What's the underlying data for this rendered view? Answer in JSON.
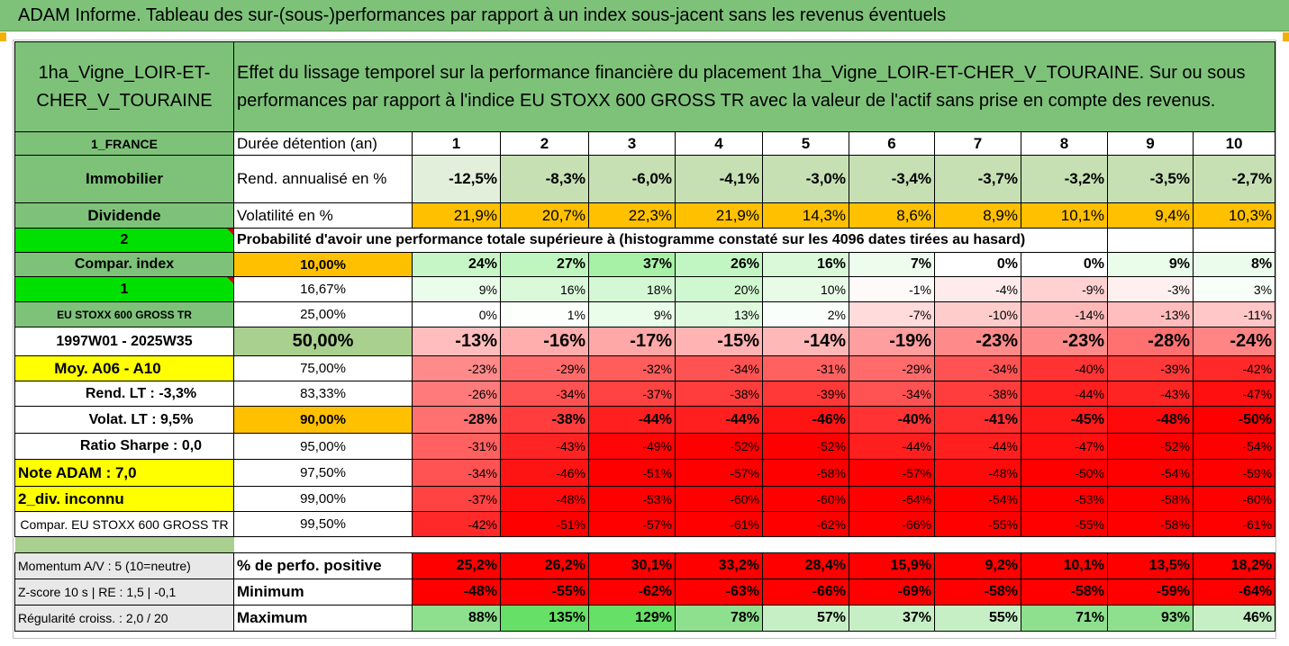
{
  "banner": "ADAM Informe. Tableau des sur-(sous-)performances par rapport à un index sous-jacent sans les revenus éventuels",
  "asset_name": "1ha_Vigne_LOIR-ET-CHER_V_TOURAINE",
  "description": "Effet du lissage temporel sur la performance financière du placement 1ha_Vigne_LOIR-ET-CHER_V_TOURAINE. Sur ou sous performances par rapport à l'indice EU STOXX 600 GROSS TR avec la valeur de l'actif sans prise en compte des revenus.",
  "years": [
    "1",
    "2",
    "3",
    "4",
    "5",
    "6",
    "7",
    "8",
    "9",
    "10"
  ],
  "colors": {
    "green_header": "#7ec27a",
    "bright_green": "#00e000",
    "yellow": "#ffff00",
    "orange": "#ffc000",
    "red_text": "#d00000"
  },
  "rows_top": {
    "country": "1_FRANCE",
    "duration_label": "Durée détention (an)",
    "category": "Immobilier",
    "return_label": "Rend. annualisé en %",
    "returns": [
      "-12,5%",
      "-8,3%",
      "-6,0%",
      "-4,1%",
      "-3,0%",
      "-3,4%",
      "-3,7%",
      "-3,2%",
      "-3,5%",
      "-2,7%"
    ],
    "dividend": "Dividende",
    "vol_label": "Volatilité en %",
    "vols": [
      "21,9%",
      "20,7%",
      "22,3%",
      "21,9%",
      "14,3%",
      "8,6%",
      "8,9%",
      "10,1%",
      "9,4%",
      "10,3%"
    ]
  },
  "prob_header": {
    "code": "2",
    "text": "Probabilité d'avoir une performance totale supérieure à (histogramme constaté sur les 4096 dates tirées au hasard)"
  },
  "left_labels": [
    "Compar. index",
    "1",
    "EU STOXX 600 GROSS TR",
    "1997W01 - 2025W35",
    "Moy. A06 - A10",
    "Rend. LT :   -3,3%",
    "Volat. LT :   9,5%",
    "Ratio Sharpe :   0,0",
    "Note ADAM : 7,0",
    "2_div. inconnu",
    "Compar. EU STOXX 600 GROSS TR"
  ],
  "percentiles": [
    "10,00%",
    "16,67%",
    "25,00%",
    "50,00%",
    "75,00%",
    "83,33%",
    "90,00%",
    "95,00%",
    "97,50%",
    "99,00%",
    "99,50%"
  ],
  "prob_values": [
    [
      "24%",
      "27%",
      "37%",
      "26%",
      "16%",
      "7%",
      "0%",
      "0%",
      "9%",
      "8%"
    ],
    [
      "9%",
      "16%",
      "18%",
      "20%",
      "10%",
      "-1%",
      "-4%",
      "-9%",
      "-3%",
      "3%"
    ],
    [
      "0%",
      "1%",
      "9%",
      "13%",
      "2%",
      "-7%",
      "-10%",
      "-14%",
      "-13%",
      "-11%"
    ],
    [
      "-13%",
      "-16%",
      "-17%",
      "-15%",
      "-14%",
      "-19%",
      "-23%",
      "-23%",
      "-28%",
      "-24%"
    ],
    [
      "-23%",
      "-29%",
      "-32%",
      "-34%",
      "-31%",
      "-29%",
      "-34%",
      "-40%",
      "-39%",
      "-42%"
    ],
    [
      "-26%",
      "-34%",
      "-37%",
      "-38%",
      "-39%",
      "-34%",
      "-38%",
      "-44%",
      "-43%",
      "-47%"
    ],
    [
      "-28%",
      "-38%",
      "-44%",
      "-44%",
      "-46%",
      "-40%",
      "-41%",
      "-45%",
      "-48%",
      "-50%"
    ],
    [
      "-31%",
      "-43%",
      "-49%",
      "-52%",
      "-52%",
      "-44%",
      "-44%",
      "-47%",
      "-52%",
      "-54%"
    ],
    [
      "-34%",
      "-46%",
      "-51%",
      "-57%",
      "-58%",
      "-57%",
      "-48%",
      "-50%",
      "-54%",
      "-59%"
    ],
    [
      "-37%",
      "-48%",
      "-53%",
      "-60%",
      "-60%",
      "-64%",
      "-54%",
      "-53%",
      "-58%",
      "-60%"
    ],
    [
      "-42%",
      "-51%",
      "-57%",
      "-61%",
      "-62%",
      "-66%",
      "-55%",
      "-55%",
      "-58%",
      "-61%"
    ]
  ],
  "bottom": [
    {
      "left": "Momentum A/V : 5 (10=neutre)",
      "label": "% de perfo. positive",
      "values": [
        "25,2%",
        "26,2%",
        "30,1%",
        "33,2%",
        "28,4%",
        "15,9%",
        "9,2%",
        "10,1%",
        "13,5%",
        "18,2%"
      ]
    },
    {
      "left": "Z-score 10 s | RE : 1,5 | -0,1",
      "label": "Minimum",
      "values": [
        "-48%",
        "-55%",
        "-62%",
        "-63%",
        "-66%",
        "-69%",
        "-58%",
        "-58%",
        "-59%",
        "-64%"
      ]
    },
    {
      "left": "Régularité croiss. : 2,0 / 20",
      "label": "Maximum",
      "values": [
        "88%",
        "135%",
        "129%",
        "78%",
        "57%",
        "37%",
        "55%",
        "71%",
        "93%",
        "46%"
      ]
    }
  ]
}
